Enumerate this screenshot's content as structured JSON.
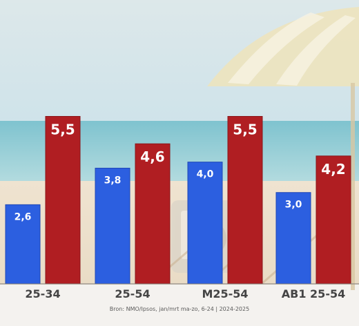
{
  "chart_data": {
    "type": "bar",
    "categories": [
      "25-34",
      "25-54",
      "M25-54",
      "AB1 25-54"
    ],
    "series": [
      {
        "values": [
          2.6,
          3.8,
          4.0,
          3.0
        ],
        "labels": [
          "2,6",
          "3,8",
          "4,0",
          "3,0"
        ],
        "color": "#2c5fe0"
      },
      {
        "values": [
          5.5,
          4.6,
          5.5,
          4.2
        ],
        "labels": [
          "5,5",
          "4,6",
          "5,5",
          "4,2"
        ],
        "color": "#b01e22"
      }
    ],
    "ylim": [
      0,
      6.6
    ],
    "grid": false,
    "legend": "none"
  },
  "footer": {
    "source": "Bron: NMO/Ipsos, jan/mrt ma-zo, 6-24 | 2024-2025"
  },
  "colors": {
    "blue": "#2c5fe0",
    "red": "#b01e22",
    "baseline": "#7a7a7a"
  }
}
